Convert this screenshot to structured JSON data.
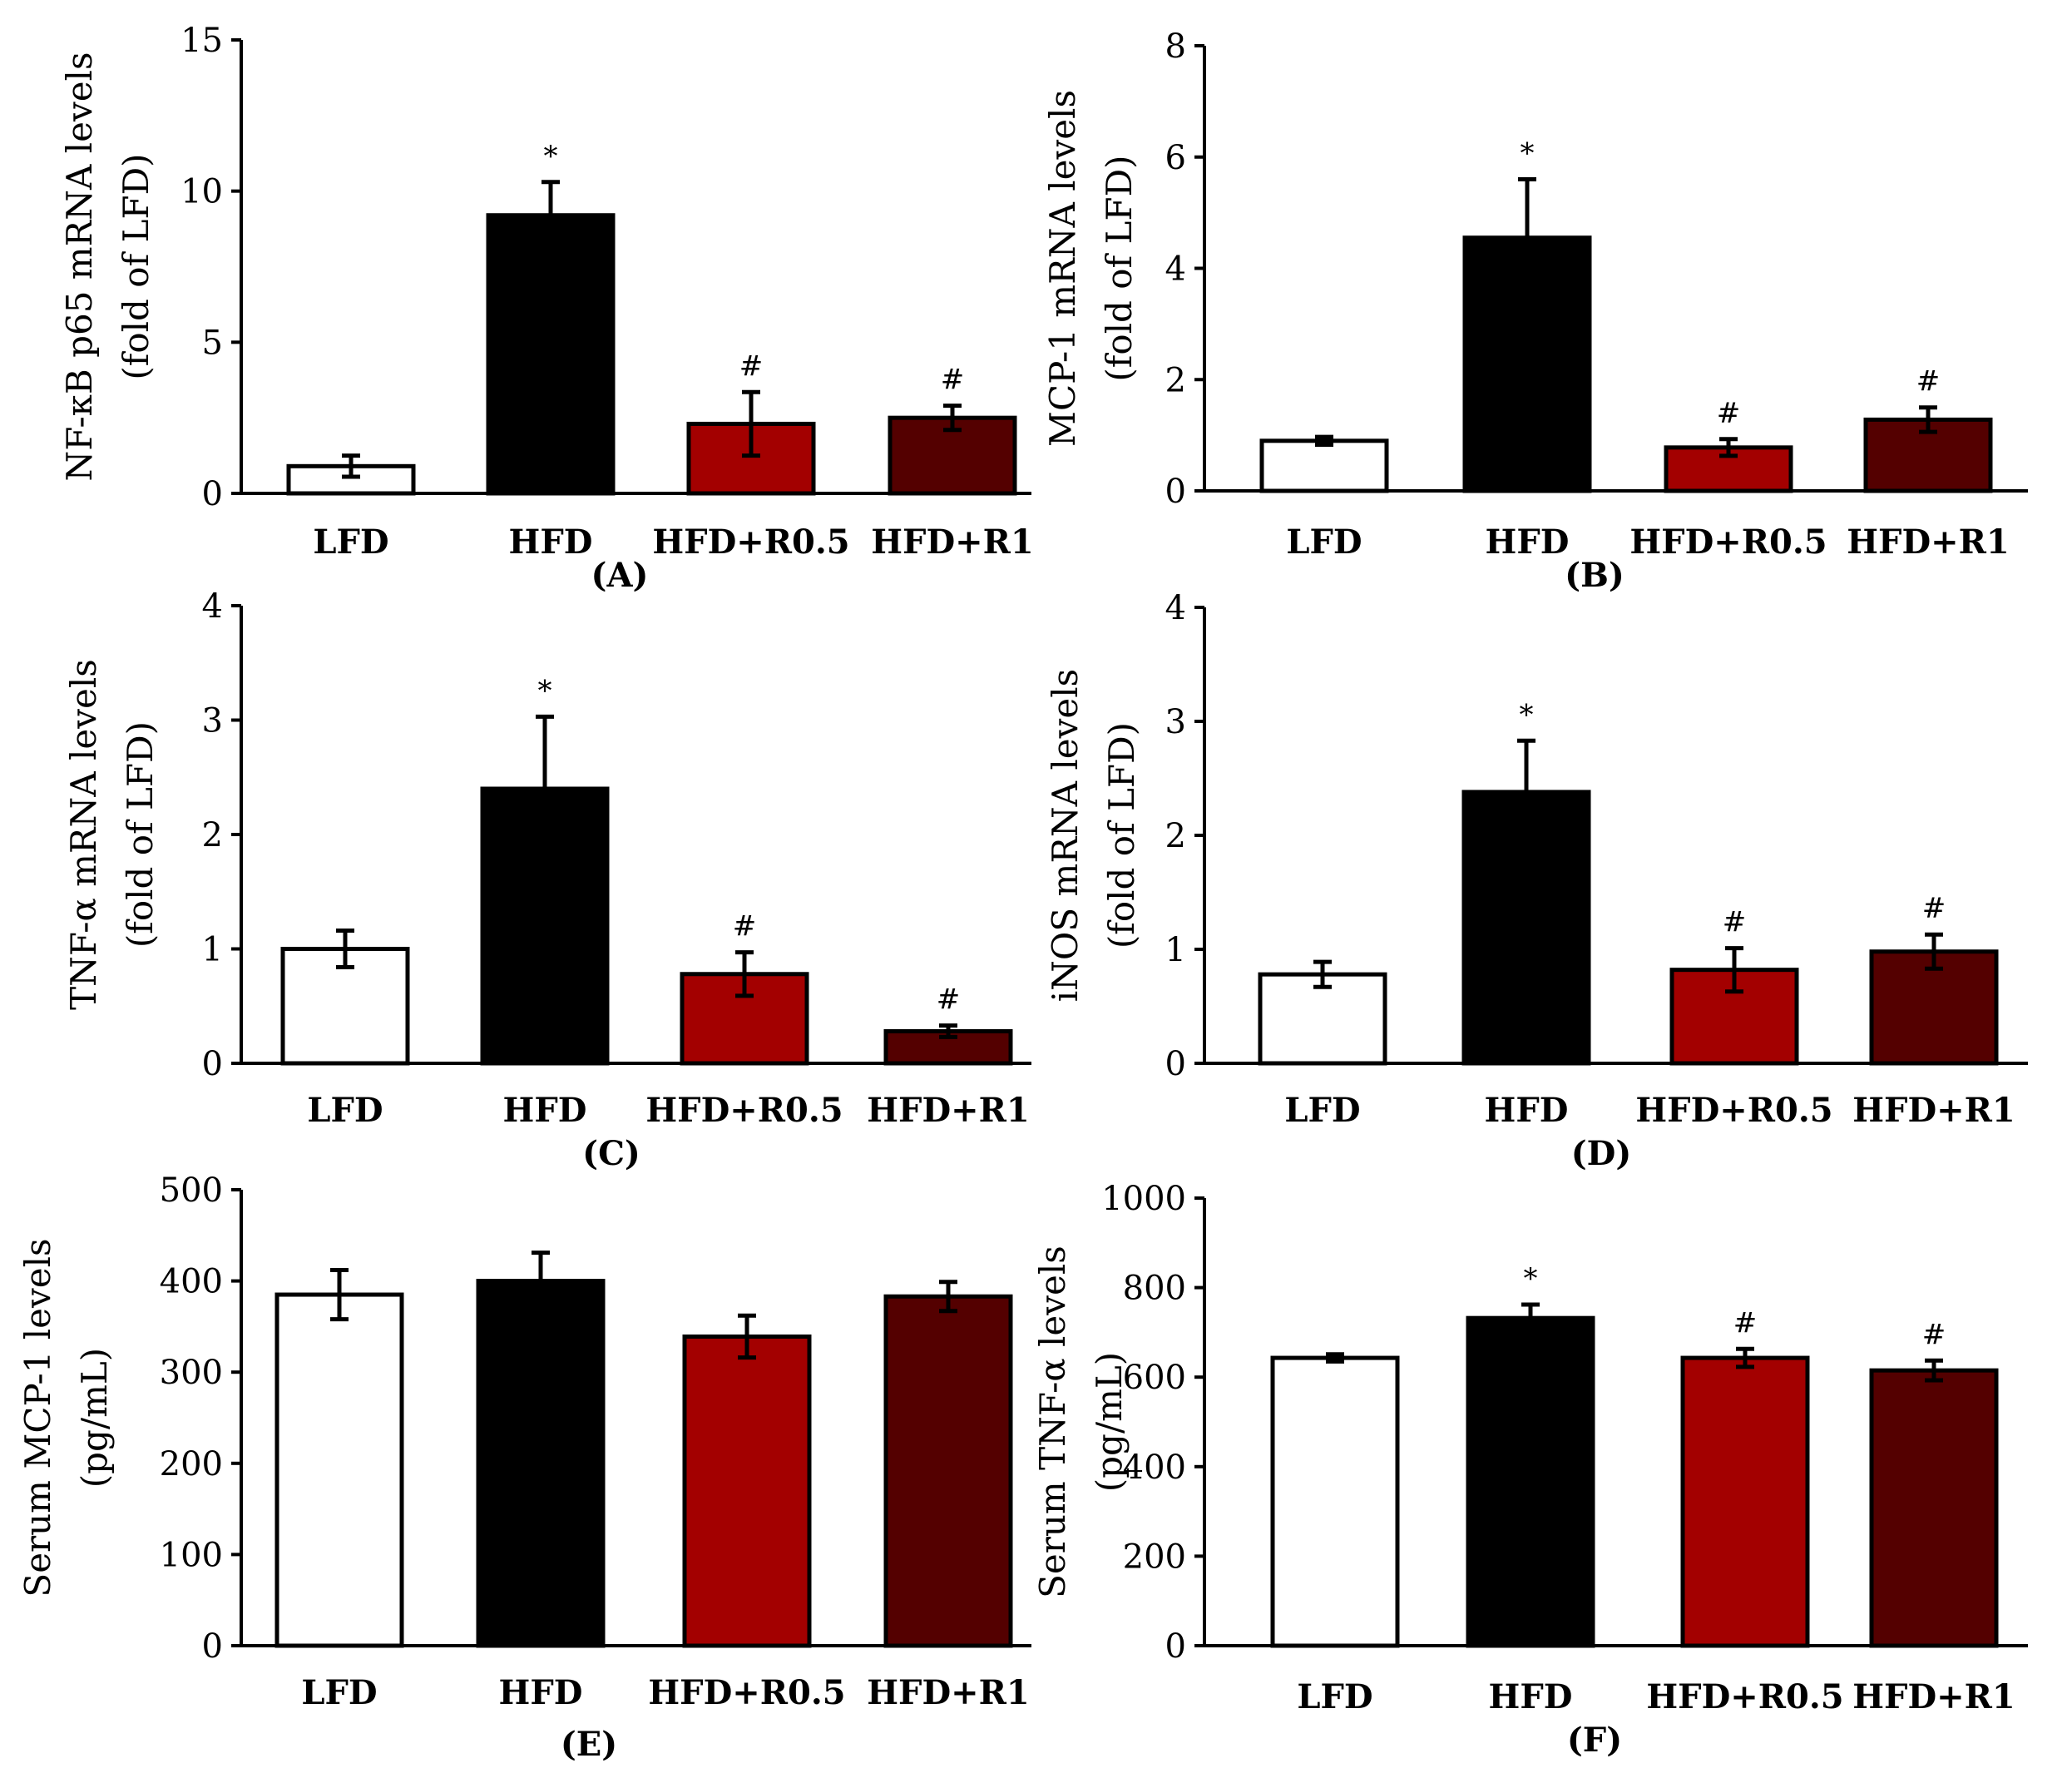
{
  "categories": [
    "LFD",
    "HFD",
    "HFD+R0.5",
    "HFD+R1"
  ],
  "colors": [
    "#ffffff",
    "#000000",
    "#a30000",
    "#540000"
  ],
  "chart_data": [
    {
      "type": "bar",
      "panel": "(A)",
      "ylabel_lines": [
        "NF-κB p65 mRNA levels",
        "(fold of LFD)"
      ],
      "ylim": [
        0,
        15
      ],
      "yticks": [
        0,
        5,
        10,
        15
      ],
      "categories": [
        "LFD",
        "HFD",
        "HFD+R0.5",
        "HFD+R1"
      ],
      "values": [
        0.9,
        9.2,
        2.3,
        2.5
      ],
      "errors": [
        0.35,
        1.1,
        1.05,
        0.4
      ],
      "annotations": [
        "",
        "*",
        "#",
        "#"
      ]
    },
    {
      "type": "bar",
      "panel": "(B)",
      "ylabel_lines": [
        "MCP-1 mRNA levels",
        "(fold of LFD)"
      ],
      "ylim": [
        0,
        8
      ],
      "yticks": [
        0,
        2,
        4,
        6,
        8
      ],
      "categories": [
        "LFD",
        "HFD",
        "HFD+R0.5",
        "HFD+R1"
      ],
      "values": [
        0.9,
        4.55,
        0.78,
        1.28
      ],
      "errors": [
        0.07,
        1.05,
        0.15,
        0.22
      ],
      "annotations": [
        "",
        "*",
        "#",
        "#"
      ]
    },
    {
      "type": "bar",
      "panel": "(C)",
      "ylabel_lines": [
        "TNF-α mRNA levels",
        "(fold of LFD)"
      ],
      "ylim": [
        0,
        4
      ],
      "yticks": [
        0,
        1,
        2,
        3,
        4
      ],
      "categories": [
        "LFD",
        "HFD",
        "HFD+R0.5",
        "HFD+R1"
      ],
      "values": [
        1.0,
        2.4,
        0.78,
        0.28
      ],
      "errors": [
        0.16,
        0.63,
        0.19,
        0.05
      ],
      "annotations": [
        "",
        "*",
        "#",
        "#"
      ]
    },
    {
      "type": "bar",
      "panel": "(D)",
      "ylabel_lines": [
        "iNOS mRNA levels",
        "(fold of LFD)"
      ],
      "ylim": [
        0,
        4
      ],
      "yticks": [
        0,
        1,
        2,
        3,
        4
      ],
      "categories": [
        "LFD",
        "HFD",
        "HFD+R0.5",
        "HFD+R1"
      ],
      "values": [
        0.78,
        2.38,
        0.82,
        0.98
      ],
      "errors": [
        0.11,
        0.45,
        0.19,
        0.15
      ],
      "annotations": [
        "",
        "*",
        "#",
        "#"
      ]
    },
    {
      "type": "bar",
      "panel": "(E)",
      "ylabel_lines": [
        "Serum MCP-1 levels",
        "(pg/mL)"
      ],
      "ylim": [
        0,
        500
      ],
      "yticks": [
        0,
        100,
        200,
        300,
        400,
        500
      ],
      "categories": [
        "LFD",
        "HFD",
        "HFD+R0.5",
        "HFD+R1"
      ],
      "values": [
        385,
        400,
        339,
        383
      ],
      "errors": [
        27,
        31,
        23,
        16
      ],
      "annotations": [
        "",
        "",
        "",
        ""
      ]
    },
    {
      "type": "bar",
      "panel": "(F)",
      "ylabel_lines": [
        "Serum TNF-α levels",
        "(pg/mL)"
      ],
      "ylim": [
        0,
        1000
      ],
      "yticks": [
        0,
        200,
        400,
        600,
        800,
        1000
      ],
      "categories": [
        "LFD",
        "HFD",
        "HFD+R0.5",
        "HFD+R1"
      ],
      "values": [
        643,
        732,
        643,
        615
      ],
      "errors": [
        8,
        30,
        20,
        22
      ],
      "annotations": [
        "",
        "*",
        "#",
        "#"
      ]
    }
  ]
}
